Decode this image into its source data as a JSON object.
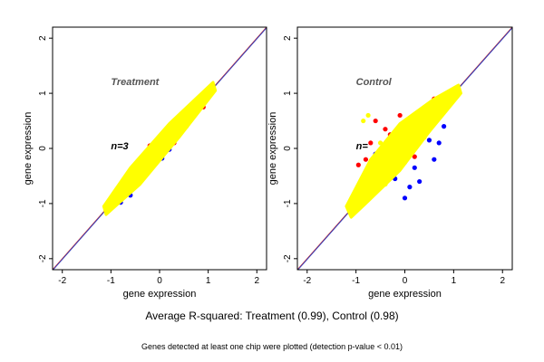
{
  "caption_main": "Average R-squared: Treatment (0.99), Control (0.98)",
  "caption_note": "Genes detected at least one chip were plotted (detection p-value < 0.01)",
  "chart_data": [
    {
      "type": "scatter",
      "title": "Treatment",
      "annotation": "n=3",
      "xlabel": "gene expression",
      "ylabel": "gene expression",
      "xlim": [
        -2.2,
        2.2
      ],
      "ylim": [
        -2.2,
        2.2
      ],
      "xticks": [
        -2,
        -1,
        0,
        1,
        2
      ],
      "yticks": [
        -2,
        -1,
        0,
        1,
        2
      ],
      "grid": false,
      "reference_lines": [
        {
          "slope": 1,
          "intercept": 0,
          "color": "#e03020"
        },
        {
          "slope": 1,
          "intercept": 0,
          "color": "#3040c0"
        }
      ],
      "series": [
        {
          "color": "#0000ff",
          "points": [
            [
              -1.05,
              -1.12
            ],
            [
              -0.8,
              -0.98
            ],
            [
              -0.6,
              -0.85
            ],
            [
              -0.3,
              -0.48
            ],
            [
              0.05,
              -0.18
            ],
            [
              -0.4,
              -0.6
            ],
            [
              -0.2,
              -0.38
            ],
            [
              0.2,
              -0.02
            ]
          ]
        },
        {
          "color": "#ff0000",
          "points": [
            [
              -0.9,
              -0.8
            ],
            [
              -0.7,
              -0.55
            ],
            [
              -0.5,
              -0.35
            ],
            [
              -0.3,
              -0.45
            ],
            [
              -0.1,
              -0.15
            ],
            [
              0.1,
              -0.05
            ],
            [
              0.3,
              0.1
            ],
            [
              0.5,
              0.6
            ],
            [
              0.4,
              0.25
            ],
            [
              0.6,
              0.5
            ],
            [
              0.8,
              0.85
            ],
            [
              0.9,
              0.75
            ],
            [
              -0.2,
              0.05
            ],
            [
              0.25,
              0.35
            ],
            [
              0.55,
              0.4
            ],
            [
              0.7,
              0.65
            ],
            [
              0.15,
              0.15
            ],
            [
              -0.6,
              -0.75
            ],
            [
              -0.15,
              -0.25
            ],
            [
              0.45,
              0.5
            ]
          ]
        },
        {
          "color": "#ffff00",
          "points": [
            [
              -1.1,
              -1.1
            ],
            [
              -0.9,
              -0.92
            ],
            [
              -0.7,
              -0.7
            ],
            [
              -0.5,
              -0.52
            ],
            [
              -0.3,
              -0.3
            ],
            [
              -0.1,
              -0.08
            ],
            [
              0.1,
              0.12
            ],
            [
              0.3,
              0.3
            ],
            [
              0.5,
              0.52
            ],
            [
              0.7,
              0.7
            ],
            [
              0.9,
              0.92
            ],
            [
              1.05,
              1.1
            ],
            [
              -0.8,
              -0.75
            ],
            [
              -0.4,
              -0.35
            ],
            [
              0.0,
              0.05
            ],
            [
              0.4,
              0.45
            ],
            [
              0.8,
              0.78
            ],
            [
              -0.6,
              -0.65
            ],
            [
              0.2,
              0.18
            ],
            [
              0.6,
              0.62
            ]
          ]
        }
      ]
    },
    {
      "type": "scatter",
      "title": "Control",
      "annotation": "n=",
      "xlabel": "gene expression",
      "ylabel": "gene expression",
      "xlim": [
        -2.2,
        2.2
      ],
      "ylim": [
        -2.2,
        2.2
      ],
      "xticks": [
        -2,
        -1,
        0,
        1,
        2
      ],
      "yticks": [
        -2,
        -1,
        0,
        1,
        2
      ],
      "grid": false,
      "reference_lines": [
        {
          "slope": 1,
          "intercept": 0,
          "color": "#e03020"
        },
        {
          "slope": 1,
          "intercept": 0,
          "color": "#3040c0"
        }
      ],
      "series": [
        {
          "color": "#0000ff",
          "points": [
            [
              -1.1,
              -1.15
            ],
            [
              -0.7,
              -0.85
            ],
            [
              -0.5,
              -0.7
            ],
            [
              -0.2,
              -0.55
            ],
            [
              0.0,
              -0.9
            ],
            [
              0.3,
              -0.6
            ],
            [
              0.2,
              -0.35
            ],
            [
              0.6,
              -0.2
            ],
            [
              0.8,
              0.4
            ],
            [
              0.5,
              0.15
            ],
            [
              -0.3,
              0.2
            ],
            [
              -0.6,
              -0.1
            ],
            [
              0.1,
              -0.7
            ],
            [
              0.7,
              0.1
            ]
          ]
        },
        {
          "color": "#ff0000",
          "points": [
            [
              -0.9,
              -0.6
            ],
            [
              -0.7,
              0.1
            ],
            [
              -0.4,
              0.35
            ],
            [
              -0.1,
              0.6
            ],
            [
              0.1,
              0.55
            ],
            [
              0.3,
              0.4
            ],
            [
              -0.5,
              -0.3
            ],
            [
              -0.2,
              -0.45
            ],
            [
              0.0,
              -0.25
            ],
            [
              -0.8,
              -0.2
            ],
            [
              -0.6,
              0.5
            ],
            [
              0.4,
              0.7
            ],
            [
              0.6,
              0.9
            ],
            [
              -0.3,
              0.25
            ],
            [
              0.2,
              -0.15
            ],
            [
              -0.95,
              -0.3
            ],
            [
              0.5,
              0.65
            ]
          ]
        },
        {
          "color": "#ffff00",
          "points": [
            [
              -1.1,
              -1.1
            ],
            [
              -0.9,
              -0.9
            ],
            [
              -0.7,
              -0.7
            ],
            [
              -0.5,
              -0.5
            ],
            [
              -0.3,
              -0.3
            ],
            [
              -0.1,
              -0.1
            ],
            [
              0.1,
              0.1
            ],
            [
              0.3,
              0.3
            ],
            [
              0.5,
              0.5
            ],
            [
              0.7,
              0.7
            ],
            [
              0.9,
              0.9
            ],
            [
              1.05,
              1.05
            ],
            [
              -0.8,
              -0.45
            ],
            [
              -0.5,
              0.1
            ],
            [
              -0.2,
              0.3
            ],
            [
              -0.6,
              -0.8
            ],
            [
              0.2,
              0.45
            ],
            [
              -0.85,
              0.5
            ],
            [
              -0.75,
              0.6
            ],
            [
              -0.4,
              -0.65
            ],
            [
              0.4,
              0.2
            ],
            [
              0.6,
              0.8
            ]
          ]
        }
      ]
    }
  ]
}
